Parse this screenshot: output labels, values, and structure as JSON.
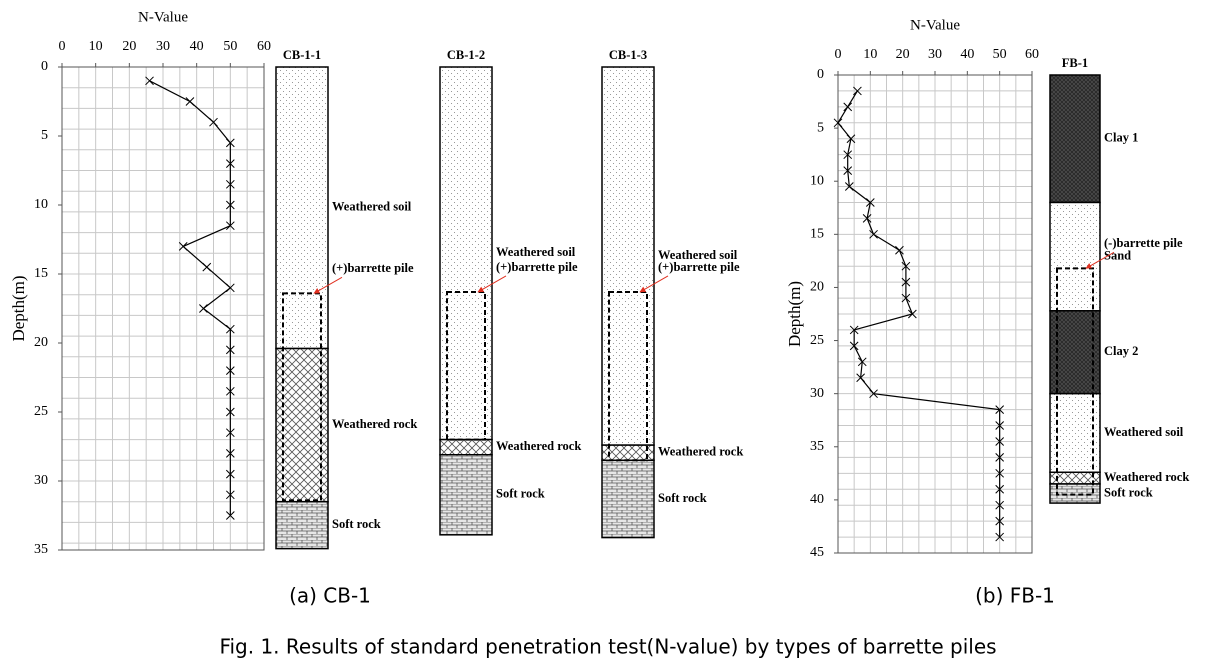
{
  "chart_data": [
    {
      "type": "line",
      "x_label": "N-Value",
      "y_label": "Depth(m)",
      "label": "(a) CB-1",
      "color": "#000000",
      "xlim": [
        0,
        60
      ],
      "xticks": [
        0,
        10,
        20,
        30,
        40,
        50,
        60
      ],
      "ylim": [
        0,
        35
      ],
      "yticks": [
        0,
        5,
        10,
        15,
        20,
        25,
        30,
        35
      ],
      "grid": true,
      "xgrid_step": 5,
      "ygrid_step": 1.5,
      "x": [
        26,
        38,
        45,
        50,
        50,
        50,
        50,
        50,
        36,
        43,
        50,
        42,
        50,
        50,
        50,
        50,
        50,
        50,
        50,
        50,
        50,
        50
      ],
      "values": [
        1,
        2.5,
        4,
        5.5,
        7,
        8.5,
        10,
        11.5,
        13,
        14.5,
        16,
        17.5,
        19,
        20.5,
        22,
        23.5,
        25,
        26.5,
        28,
        29.5,
        31,
        32.5
      ],
      "logs": [
        {
          "name": "CB-1-1",
          "layers": [
            {
              "label": "Weathered soil",
              "top": 0,
              "bottom": 20.4,
              "fill": "dots"
            },
            {
              "label": "Weathered rock",
              "top": 20.4,
              "bottom": 31.5,
              "fill": "hatch"
            },
            {
              "label": "Soft rock",
              "top": 31.5,
              "bottom": 34.9,
              "fill": "brick"
            }
          ],
          "pile": {
            "label": "(+)barrette pile",
            "top": 16.4,
            "bottom": 31.4
          }
        },
        {
          "name": "CB-1-2",
          "layers": [
            {
              "label": "Weathered soil",
              "top": 0,
              "bottom": 27,
              "fill": "dots"
            },
            {
              "label": "Weathered rock",
              "top": 27,
              "bottom": 28.1,
              "fill": "hatch"
            },
            {
              "label": "Soft rock",
              "top": 28.1,
              "bottom": 33.9,
              "fill": "brick"
            }
          ],
          "pile": {
            "label": "(+)barrette pile",
            "top": 16.3,
            "bottom": 27
          }
        },
        {
          "name": "CB-1-3",
          "layers": [
            {
              "label": "Weathered soil",
              "top": 0,
              "bottom": 27.4,
              "fill": "dots"
            },
            {
              "label": "Weathered rock",
              "top": 27.4,
              "bottom": 28.5,
              "fill": "hatch"
            },
            {
              "label": "Soft rock",
              "top": 28.5,
              "bottom": 34.1,
              "fill": "brick"
            }
          ],
          "pile": {
            "label": "(+)barrette pile",
            "top": 16.3,
            "bottom": 28.5
          }
        }
      ]
    },
    {
      "type": "line",
      "x_label": "N-Value",
      "y_label": "Depth(m)",
      "label": "(b) FB-1",
      "color": "#000000",
      "xlim": [
        0,
        60
      ],
      "xticks": [
        0,
        10,
        20,
        30,
        40,
        50,
        60
      ],
      "ylim": [
        0,
        45
      ],
      "yticks": [
        0,
        5,
        10,
        15,
        20,
        25,
        30,
        35,
        40,
        45
      ],
      "grid": true,
      "xgrid_step": 5,
      "ygrid_step": 1.5,
      "x": [
        6,
        3,
        0,
        4,
        3,
        3,
        3.5,
        10,
        9,
        11,
        19,
        21,
        21,
        21,
        23,
        5,
        5,
        7.5,
        7,
        11,
        50,
        50,
        50,
        50,
        50,
        50,
        50,
        50,
        50
      ],
      "values": [
        1.5,
        3,
        4.5,
        6,
        7.5,
        9,
        10.5,
        12,
        13.5,
        15,
        16.5,
        18,
        19.5,
        21,
        22.5,
        24,
        25.5,
        27,
        28.5,
        30,
        31.5,
        33,
        34.5,
        36,
        37.5,
        39,
        40.5,
        42,
        43.5
      ],
      "logs": [
        {
          "name": "FB-1",
          "layers": [
            {
              "label": "Clay 1",
              "top": 0,
              "bottom": 12,
              "fill": "clay"
            },
            {
              "label": "Sand",
              "top": 12,
              "bottom": 22.2,
              "fill": "dots"
            },
            {
              "label": "Clay 2",
              "top": 22.2,
              "bottom": 30,
              "fill": "clay"
            },
            {
              "label": "Weathered soil",
              "top": 30,
              "bottom": 37.4,
              "fill": "dots"
            },
            {
              "label": "Weathered rock",
              "top": 37.4,
              "bottom": 38.5,
              "fill": "hatch"
            },
            {
              "label": "Soft rock",
              "top": 38.5,
              "bottom": 40.3,
              "fill": "brick"
            }
          ],
          "pile": {
            "label": "(-)barrette pile",
            "top": 18.2,
            "bottom": 39.5
          }
        }
      ]
    }
  ],
  "caption": "Fig. 1. Results of standard penetration test(N-value) by types of barrette piles"
}
